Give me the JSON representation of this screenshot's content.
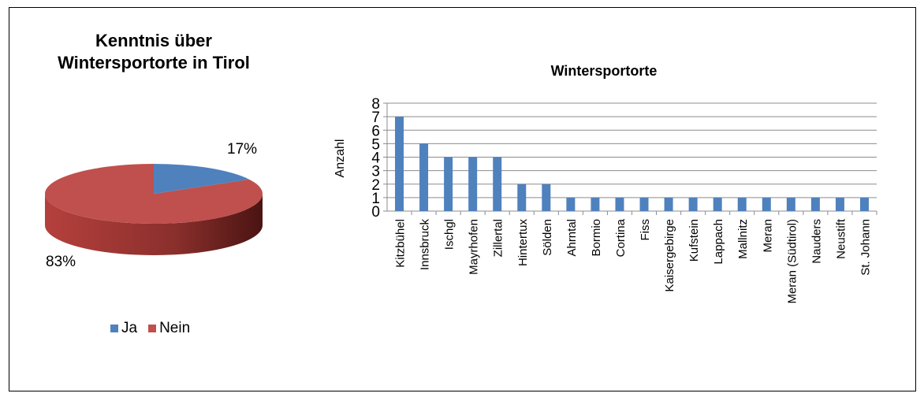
{
  "chart_data": [
    {
      "type": "pie",
      "title": "Kenntnis über Wintersportorte in Tirol",
      "categories": [
        "Ja",
        "Nein"
      ],
      "values": [
        17,
        83
      ],
      "data_labels": [
        "17%",
        "83%"
      ],
      "colors": [
        "#4f81bd",
        "#c0504d"
      ],
      "legend": "bottom"
    },
    {
      "type": "bar",
      "title": "Wintersportorte",
      "xlabel": "",
      "ylabel": "Anzahl",
      "ylim": [
        0,
        8
      ],
      "yticks": [
        0,
        1,
        2,
        3,
        4,
        5,
        6,
        7,
        8
      ],
      "grid": true,
      "color": "#4f81bd",
      "categories": [
        "Kitzbühel",
        "Innsbruck",
        "Ischgl",
        "Mayrhofen",
        "Zillertal",
        "Hintertux",
        "Sölden",
        "Ahrntal",
        "Bormio",
        "Cortina",
        "Fiss",
        "Kaisergebirge",
        "Kufstein",
        "Lappach",
        "Mallnitz",
        "Meran",
        "Meran (Südtirol)",
        "Nauders",
        "Neustift",
        "St. Johann"
      ],
      "values": [
        7,
        5,
        4,
        4,
        4,
        2,
        2,
        1,
        1,
        1,
        1,
        1,
        1,
        1,
        1,
        1,
        1,
        1,
        1,
        1
      ]
    }
  ]
}
